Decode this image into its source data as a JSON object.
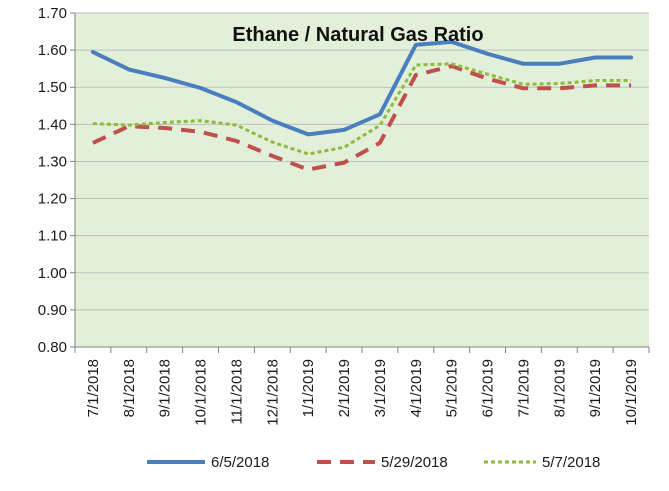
{
  "chart_data": {
    "type": "line",
    "title": "Ethane / Natural Gas Ratio",
    "xlabel": "",
    "ylabel": "",
    "ylim": [
      0.8,
      1.7
    ],
    "yticks": [
      "0.80",
      "0.90",
      "1.00",
      "1.10",
      "1.20",
      "1.30",
      "1.40",
      "1.50",
      "1.60",
      "1.70"
    ],
    "categories": [
      "7/1/2018",
      "8/1/2018",
      "9/1/2018",
      "10/1/2018",
      "11/1/2018",
      "12/1/2018",
      "1/1/2019",
      "2/1/2019",
      "3/1/2019",
      "4/1/2019",
      "5/1/2019",
      "6/1/2019",
      "7/1/2019",
      "8/1/2019",
      "9/1/2019",
      "10/1/2019"
    ],
    "grid": "horizontal",
    "legend_position": "bottom",
    "plot_background": "#e2f0d9",
    "series": [
      {
        "name": "6/5/2018",
        "color": "#4a7ebf",
        "style": "solid",
        "values": [
          1.595,
          1.548,
          1.525,
          1.498,
          1.46,
          1.41,
          1.373,
          1.385,
          1.427,
          1.614,
          1.622,
          1.59,
          1.563,
          1.563,
          1.58,
          1.58
        ]
      },
      {
        "name": "5/29/2018",
        "color": "#c0504d",
        "style": "dashed",
        "values": [
          1.35,
          1.395,
          1.39,
          1.38,
          1.355,
          1.315,
          1.278,
          1.297,
          1.35,
          1.533,
          1.557,
          1.523,
          1.497,
          1.497,
          1.505,
          1.505
        ]
      },
      {
        "name": "5/7/2018",
        "color": "#8dbb3a",
        "style": "dotted",
        "values": [
          1.402,
          1.398,
          1.405,
          1.41,
          1.398,
          1.352,
          1.32,
          1.338,
          1.397,
          1.56,
          1.563,
          1.535,
          1.508,
          1.51,
          1.518,
          1.518
        ]
      }
    ]
  }
}
